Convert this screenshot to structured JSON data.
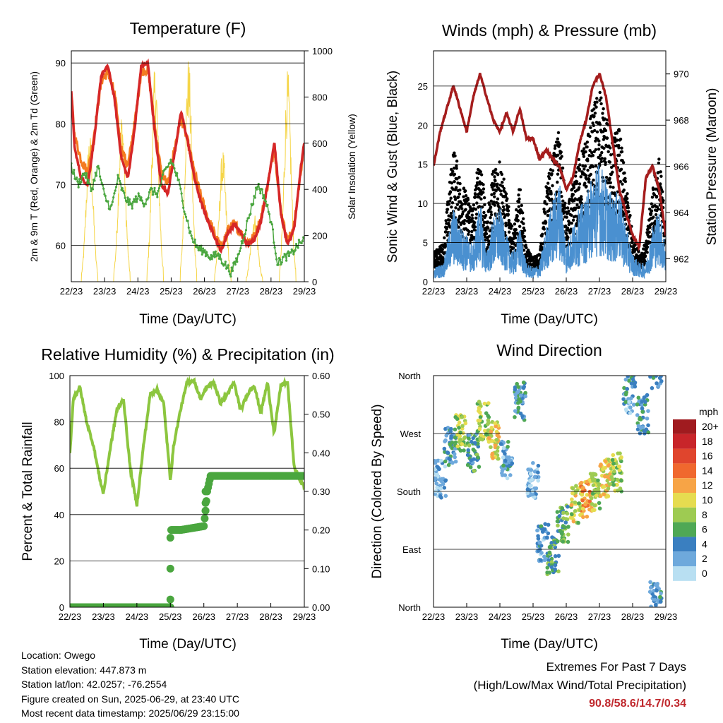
{
  "panels": {
    "temperature": {
      "title": "Temperature (F)",
      "xlabel": "Time (Day/UTC)",
      "ylabel_left": "2m & 9m T (Red, Orange) & 2m Td (Green)",
      "ylabel_right": "Solar Insolation (Yellow)"
    },
    "winds": {
      "title": "Winds (mph) & Pressure (mb)",
      "xlabel": "Time (Day/UTC)",
      "ylabel_left": "Sonic Wind & Gust (Blue, Black)",
      "ylabel_right": "Station Pressure (Maroon)"
    },
    "humidity": {
      "title": "Relative Humidity (%) & Precipitation (in)",
      "xlabel": "Time (Day/UTC)",
      "ylabel_left": "Percent & Total Rainfall"
    },
    "direction": {
      "title": "Wind Direction",
      "xlabel": "Time (Day/UTC)",
      "ylabel_left": "Direction (Colored By Speed)",
      "legend_unit": "mph",
      "legend_labels": [
        "20+",
        "18",
        "16",
        "14",
        "12",
        "10",
        "8",
        "6",
        "4",
        "2",
        "0"
      ],
      "legend_colors": [
        "#a01b1f",
        "#c8252a",
        "#e0452d",
        "#f0682e",
        "#f7a446",
        "#e6dc50",
        "#9ecb52",
        "#4fa855",
        "#3a7fc0",
        "#6ea9dc",
        "#b8dff2"
      ]
    }
  },
  "info": {
    "location": "Location: Owego",
    "elevation": "Station elevation: 447.873 m",
    "latlon": "Station lat/lon: 42.0257; -76.2554",
    "created": "Figure created on Sun, 2025-06-29, at 23:40 UTC",
    "timestamp": "Most recent data timestamp: 2025/06/29 23:15:00"
  },
  "extremes": {
    "title": "Extremes For Past 7 Days",
    "subtitle": "(High/Low/Max Wind/Total Precipitation)",
    "values": "90.8/58.6/14.7/0.34"
  },
  "chart_data": [
    {
      "type": "line",
      "panel": "temperature",
      "x_ticks": [
        "22/23",
        "23/23",
        "24/23",
        "25/23",
        "26/23",
        "27/23",
        "28/23",
        "29/23"
      ],
      "ylim_left": [
        54,
        92
      ],
      "yticks_left": [
        60,
        70,
        80,
        90
      ],
      "ylim_right": [
        0,
        1000
      ],
      "yticks_right": [
        0,
        200,
        400,
        600,
        800,
        1000
      ],
      "series": [
        {
          "name": "2m T",
          "color": "#d62728",
          "axis": "left",
          "x": [
            0,
            0.1,
            0.3,
            0.5,
            0.7,
            0.9,
            1.1,
            1.3,
            1.5,
            1.7,
            1.9,
            2.1,
            2.3,
            2.5,
            2.7,
            2.9,
            3.1,
            3.3,
            3.5,
            3.7,
            3.9,
            4.1,
            4.3,
            4.5,
            4.7,
            4.9,
            5.1,
            5.3,
            5.5,
            5.7,
            5.9,
            6.1,
            6.3,
            6.5,
            6.7,
            6.9,
            7
          ],
          "y": [
            85.5,
            76,
            71,
            70,
            78,
            88,
            89.5,
            84,
            74.5,
            71,
            79,
            89.5,
            90,
            79,
            70,
            68.5,
            75,
            82,
            77,
            71,
            67,
            64,
            61.5,
            59,
            62,
            63.5,
            62,
            60,
            61,
            64,
            70,
            77,
            65,
            60,
            63,
            73,
            77
          ]
        },
        {
          "name": "9m T",
          "color": "#f47b20",
          "axis": "left",
          "x": [
            0,
            0.1,
            0.3,
            0.5,
            0.7,
            0.9,
            1.1,
            1.3,
            1.5,
            1.7,
            1.9,
            2.1,
            2.3,
            2.5,
            2.7,
            2.9,
            3.1,
            3.3,
            3.5,
            3.7,
            3.9,
            4.1,
            4.3,
            4.5,
            4.7,
            4.9,
            5.1,
            5.3,
            5.5,
            5.7,
            5.9,
            6.1,
            6.3,
            6.5,
            6.7,
            6.9,
            7
          ],
          "y": [
            85,
            78,
            74,
            72,
            79,
            87,
            88.5,
            85,
            76,
            73,
            80,
            88.5,
            89,
            80,
            72,
            70,
            76,
            81,
            77,
            72,
            68,
            64.5,
            62,
            59.5,
            62.5,
            63.5,
            62,
            60.5,
            61.5,
            64.5,
            70,
            76,
            65.5,
            60.5,
            63.5,
            72.5,
            76.5
          ]
        },
        {
          "name": "2m Td",
          "color": "#4aa63f",
          "axis": "left",
          "x": [
            0,
            0.2,
            0.4,
            0.6,
            0.8,
            1,
            1.2,
            1.4,
            1.6,
            1.8,
            2,
            2.2,
            2.4,
            2.6,
            2.8,
            3,
            3.2,
            3.4,
            3.6,
            3.8,
            4,
            4.2,
            4.4,
            4.6,
            4.8,
            5,
            5.2,
            5.4,
            5.6,
            5.8,
            6,
            6.2,
            6.4,
            6.6,
            6.8,
            7
          ],
          "y": [
            73,
            70,
            72,
            69,
            73,
            68,
            66,
            71,
            68,
            66.5,
            68,
            67,
            69,
            68.5,
            72,
            74,
            71,
            66,
            61.5,
            59.5,
            59,
            58,
            58.5,
            57,
            55.5,
            58,
            62,
            66,
            70,
            68,
            64,
            57,
            58,
            58.5,
            60,
            61
          ]
        },
        {
          "name": "Solar Insolation",
          "color": "#f5d547",
          "axis": "right",
          "peaks": [
            0.55,
            1.52,
            2.52,
            3.52,
            4.55,
            5.5,
            6.5
          ],
          "peak_values": [
            650,
            750,
            950,
            980,
            580,
            300,
            920
          ]
        }
      ]
    },
    {
      "type": "line",
      "panel": "winds",
      "x_ticks": [
        "22/23",
        "23/23",
        "24/23",
        "25/23",
        "26/23",
        "27/23",
        "28/23",
        "29/23"
      ],
      "ylim_left": [
        0,
        29.5
      ],
      "yticks_left": [
        0,
        5,
        10,
        15,
        20,
        25
      ],
      "ylim_right": [
        961,
        971
      ],
      "yticks_right": [
        962,
        964,
        966,
        968,
        970
      ],
      "series": [
        {
          "name": "Sonic Wind",
          "color": "#4a90d0",
          "axis": "left",
          "x": [
            0,
            0.3,
            0.6,
            0.8,
            1,
            1.2,
            1.4,
            1.6,
            1.8,
            2,
            2.2,
            2.4,
            2.6,
            2.8,
            3,
            3.2,
            3.4,
            3.6,
            3.8,
            4,
            4.2,
            4.4,
            4.6,
            4.8,
            5,
            5.2,
            5.4,
            5.6,
            5.8,
            6,
            6.2,
            6.4,
            6.6,
            6.8,
            7
          ],
          "y": [
            1.5,
            2,
            8,
            6,
            5,
            4,
            9,
            3,
            7,
            8,
            5,
            3,
            6,
            2,
            1.5,
            2,
            6,
            9,
            11,
            4,
            6,
            8,
            9,
            12,
            13,
            11,
            9,
            10,
            6,
            3,
            2,
            2,
            6,
            8,
            4
          ]
        },
        {
          "name": "Gust",
          "color": "#000000",
          "axis": "left",
          "x": [
            0,
            0.3,
            0.6,
            0.8,
            1,
            1.2,
            1.4,
            1.6,
            1.8,
            2,
            2.2,
            2.4,
            2.6,
            2.8,
            3,
            3.2,
            3.4,
            3.6,
            3.8,
            4,
            4.2,
            4.4,
            4.6,
            4.8,
            5,
            5.2,
            5.4,
            5.6,
            5.8,
            6,
            6.2,
            6.4,
            6.6,
            6.8,
            7
          ],
          "y": [
            3,
            4,
            14,
            11,
            9,
            8,
            14,
            6,
            12,
            13,
            9,
            5,
            10,
            3.5,
            2.5,
            3,
            10,
            13,
            16,
            7,
            10,
            13,
            15,
            18,
            20,
            17,
            15,
            16,
            10,
            5,
            3,
            4,
            10,
            13,
            6
          ]
        },
        {
          "name": "Station Pressure",
          "color": "#a51d1d",
          "axis": "right",
          "x": [
            0,
            0.2,
            0.4,
            0.6,
            0.8,
            1,
            1.2,
            1.4,
            1.6,
            1.8,
            2,
            2.2,
            2.4,
            2.6,
            2.8,
            3,
            3.2,
            3.4,
            3.6,
            3.8,
            4,
            4.2,
            4.4,
            4.6,
            4.8,
            5,
            5.2,
            5.4,
            5.6,
            5.8,
            6,
            6.2,
            6.4,
            6.6,
            6.8,
            7
          ],
          "y": [
            966,
            967.5,
            968.5,
            969.5,
            968.5,
            967.5,
            969,
            970,
            969,
            968,
            967.5,
            968.3,
            967.5,
            968.5,
            967.2,
            967.2,
            966.3,
            966.7,
            966.3,
            966,
            965,
            965.5,
            967,
            968,
            969.5,
            970,
            969,
            967,
            965,
            964,
            963,
            962.5,
            965.5,
            966,
            965,
            963
          ]
        }
      ]
    },
    {
      "type": "line",
      "panel": "humidity",
      "x_ticks": [
        "22/23",
        "23/23",
        "24/23",
        "25/23",
        "26/23",
        "27/23",
        "28/23",
        "29/23"
      ],
      "ylim_left": [
        0,
        100
      ],
      "yticks_left": [
        0,
        20,
        40,
        60,
        80,
        100
      ],
      "ylim_right": [
        0,
        0.6
      ],
      "yticks_right": [
        "0.00",
        "0.10",
        "0.20",
        "0.30",
        "0.40",
        "0.50",
        "0.60"
      ],
      "series": [
        {
          "name": "Relative Humidity",
          "color": "#8cc63f",
          "axis": "left",
          "x": [
            0,
            0.1,
            0.3,
            0.5,
            0.7,
            0.9,
            1,
            1.2,
            1.4,
            1.6,
            1.8,
            2,
            2.2,
            2.4,
            2.6,
            2.8,
            3,
            3.1,
            3.3,
            3.5,
            3.7,
            3.9,
            4.1,
            4.3,
            4.5,
            4.7,
            4.9,
            5.1,
            5.3,
            5.5,
            5.7,
            5.9,
            6.1,
            6.3,
            6.5,
            6.7,
            7
          ],
          "y": [
            66,
            90,
            95,
            80,
            70,
            55,
            49,
            68,
            85,
            90,
            60,
            44,
            70,
            92,
            94,
            88,
            55,
            70,
            85,
            97,
            98,
            90,
            95,
            97,
            88,
            92,
            97,
            85,
            92,
            96,
            84,
            97,
            75,
            96,
            97,
            60,
            52
          ]
        },
        {
          "name": "Total Precipitation",
          "color": "#4aa63f",
          "axis": "right",
          "x": [
            0,
            3.0,
            3.0,
            3.05,
            3.3,
            4.0,
            4.05,
            4.1,
            4.2,
            4.4,
            7.0
          ],
          "y": [
            0,
            0,
            0.2,
            0.2,
            0.2,
            0.21,
            0.25,
            0.3,
            0.34,
            0.34,
            0.34
          ]
        }
      ]
    },
    {
      "type": "scatter",
      "panel": "direction",
      "x_ticks": [
        "22/23",
        "23/23",
        "24/23",
        "25/23",
        "26/23",
        "27/23",
        "28/23",
        "29/23"
      ],
      "yticks": [
        "North",
        "East",
        "South",
        "West",
        "North"
      ],
      "ylim": [
        0,
        360
      ],
      "clusters": [
        {
          "x": 0.2,
          "dir": 200,
          "speed": 2
        },
        {
          "x": 0.5,
          "dir": 250,
          "speed": 4
        },
        {
          "x": 0.8,
          "dir": 270,
          "speed": 8
        },
        {
          "x": 1.2,
          "dir": 240,
          "speed": 5
        },
        {
          "x": 1.5,
          "dir": 290,
          "speed": 8
        },
        {
          "x": 1.8,
          "dir": 260,
          "speed": 10
        },
        {
          "x": 2.2,
          "dir": 230,
          "speed": 3
        },
        {
          "x": 2.6,
          "dir": 320,
          "speed": 4
        },
        {
          "x": 3.0,
          "dir": 200,
          "speed": 2
        },
        {
          "x": 3.3,
          "dir": 100,
          "speed": 3
        },
        {
          "x": 3.6,
          "dir": 80,
          "speed": 6
        },
        {
          "x": 3.9,
          "dir": 130,
          "speed": 6
        },
        {
          "x": 4.3,
          "dir": 160,
          "speed": 9
        },
        {
          "x": 4.6,
          "dir": 170,
          "speed": 12
        },
        {
          "x": 4.9,
          "dir": 180,
          "speed": 8
        },
        {
          "x": 5.2,
          "dir": 200,
          "speed": 10
        },
        {
          "x": 5.5,
          "dir": 210,
          "speed": 8
        },
        {
          "x": 5.9,
          "dir": 330,
          "speed": 3
        },
        {
          "x": 6.3,
          "dir": 300,
          "speed": 4
        },
        {
          "x": 6.7,
          "dir": 10,
          "speed": 3
        }
      ]
    }
  ]
}
